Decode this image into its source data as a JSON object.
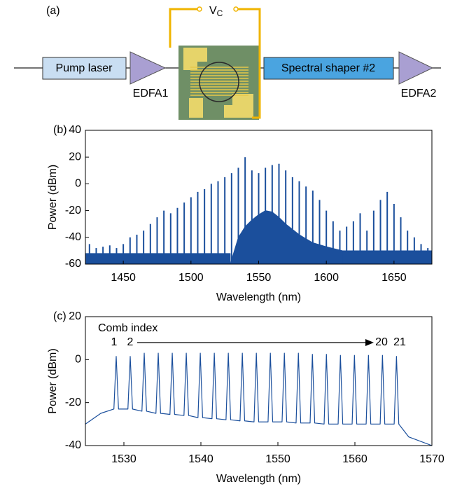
{
  "diagram": {
    "panel_label": "(a)",
    "voltage": "V",
    "voltage_subscript": "C",
    "pump": "Pump laser",
    "amp1": "EDFA1",
    "shaper": "Spectral shaper #2",
    "amp2": "EDFA2"
  },
  "chart_data": [
    {
      "type": "spectrum",
      "panel_label": "(b)",
      "x_label": "Wavelength (nm)",
      "y_label": "Power (dBm)",
      "xlim": [
        1422,
        1678
      ],
      "ylim": [
        -60,
        40
      ],
      "xticks": [
        1450,
        1500,
        1550,
        1600,
        1650
      ],
      "yticks": [
        40,
        20,
        0,
        -20,
        -40,
        -60
      ],
      "series": [
        {
          "style": "stem",
          "color": "#1b4f9c",
          "x": [
            1425,
            1430,
            1435,
            1440,
            1445,
            1450,
            1455,
            1460,
            1465,
            1470,
            1475,
            1480,
            1485,
            1490,
            1495,
            1500,
            1505,
            1510,
            1515,
            1520,
            1525,
            1530,
            1535,
            1540,
            1545,
            1550,
            1555,
            1560,
            1565,
            1570,
            1575,
            1580,
            1585,
            1590,
            1595,
            1600,
            1605,
            1610,
            1615,
            1620,
            1625,
            1630,
            1635,
            1640,
            1645,
            1650,
            1655,
            1660,
            1665,
            1670,
            1675
          ],
          "values": [
            -45,
            -48,
            -47,
            -46,
            -48,
            -45,
            -40,
            -38,
            -35,
            -30,
            -25,
            -20,
            -22,
            -18,
            -14,
            -10,
            -6,
            -4,
            0,
            2,
            5,
            8,
            12,
            20,
            10,
            8,
            12,
            14,
            15,
            10,
            5,
            2,
            -2,
            -5,
            -12,
            -20,
            -28,
            -35,
            -32,
            -28,
            -22,
            -35,
            -20,
            -12,
            -6,
            -15,
            -25,
            -35,
            -40,
            -45,
            -48
          ]
        },
        {
          "style": "area",
          "color": "#1b4f9c",
          "x": [
            1422,
            1529,
            1570,
            1612,
            1678
          ],
          "values": [
            -52,
            -52,
            null,
            -50,
            -50
          ]
        },
        {
          "style": "area",
          "color": "#1b4f9c",
          "x": [
            1529,
            1535,
            1540,
            1545,
            1550,
            1555,
            1560,
            1565,
            1570,
            1580,
            1590,
            1600,
            1612
          ],
          "values": [
            -60,
            -40,
            -32,
            -27,
            -23,
            -20,
            -21,
            -25,
            -30,
            -38,
            -44,
            -47,
            -50
          ]
        }
      ]
    },
    {
      "type": "line",
      "panel_label": "(c)",
      "x_label": "Wavelength (nm)",
      "y_label": "Power (dBm)",
      "xlim": [
        1525,
        1570
      ],
      "ylim": [
        -40,
        20
      ],
      "xticks": [
        1530,
        1540,
        1550,
        1560,
        1570
      ],
      "yticks": [
        20,
        0,
        -20,
        -40
      ],
      "annotation": "Comb index",
      "index_labels": [
        "1",
        "2",
        "20",
        "21"
      ],
      "series": [
        {
          "color": "#1b4f9c",
          "x": [
            1525,
            1527,
            1528.7,
            1529.0,
            1529.3,
            1530.52,
            1530.82,
            1531.12,
            1532.34,
            1532.64,
            1532.94,
            1534.16,
            1534.46,
            1534.76,
            1535.98,
            1536.28,
            1536.58,
            1537.8,
            1538.1,
            1538.4,
            1539.62,
            1539.92,
            1540.22,
            1541.44,
            1541.74,
            1542.04,
            1543.26,
            1543.56,
            1543.86,
            1545.08,
            1545.38,
            1545.68,
            1546.9,
            1547.2,
            1547.5,
            1548.72,
            1549.02,
            1549.32,
            1550.54,
            1550.84,
            1551.14,
            1552.36,
            1552.66,
            1552.96,
            1554.18,
            1554.48,
            1554.78,
            1556.0,
            1556.3,
            1556.6,
            1557.82,
            1558.12,
            1558.42,
            1559.64,
            1559.94,
            1560.24,
            1561.46,
            1561.76,
            1562.06,
            1563.28,
            1563.58,
            1563.88,
            1565.1,
            1565.4,
            1565.7,
            1567,
            1570
          ],
          "values": [
            -30,
            -25,
            -23,
            1.5,
            -23,
            -23,
            1.5,
            -23,
            -24,
            3,
            -24,
            -25,
            3,
            -25,
            -25.5,
            3,
            -25.5,
            -26,
            3,
            -26,
            -27,
            3,
            -27,
            -27.5,
            3,
            -27.5,
            -28,
            3,
            -28,
            -28.5,
            3,
            -28.5,
            -29,
            3,
            -29,
            -29,
            3,
            -29,
            -29,
            3,
            -29,
            -29.5,
            3,
            -29.5,
            -29.5,
            2.5,
            -29.5,
            -30,
            2.5,
            -30,
            -30,
            2,
            -30,
            -30,
            2,
            -30,
            -30,
            2,
            -30,
            -30,
            2,
            -30,
            -30,
            1.5,
            -30,
            -36,
            -40
          ]
        }
      ]
    }
  ]
}
